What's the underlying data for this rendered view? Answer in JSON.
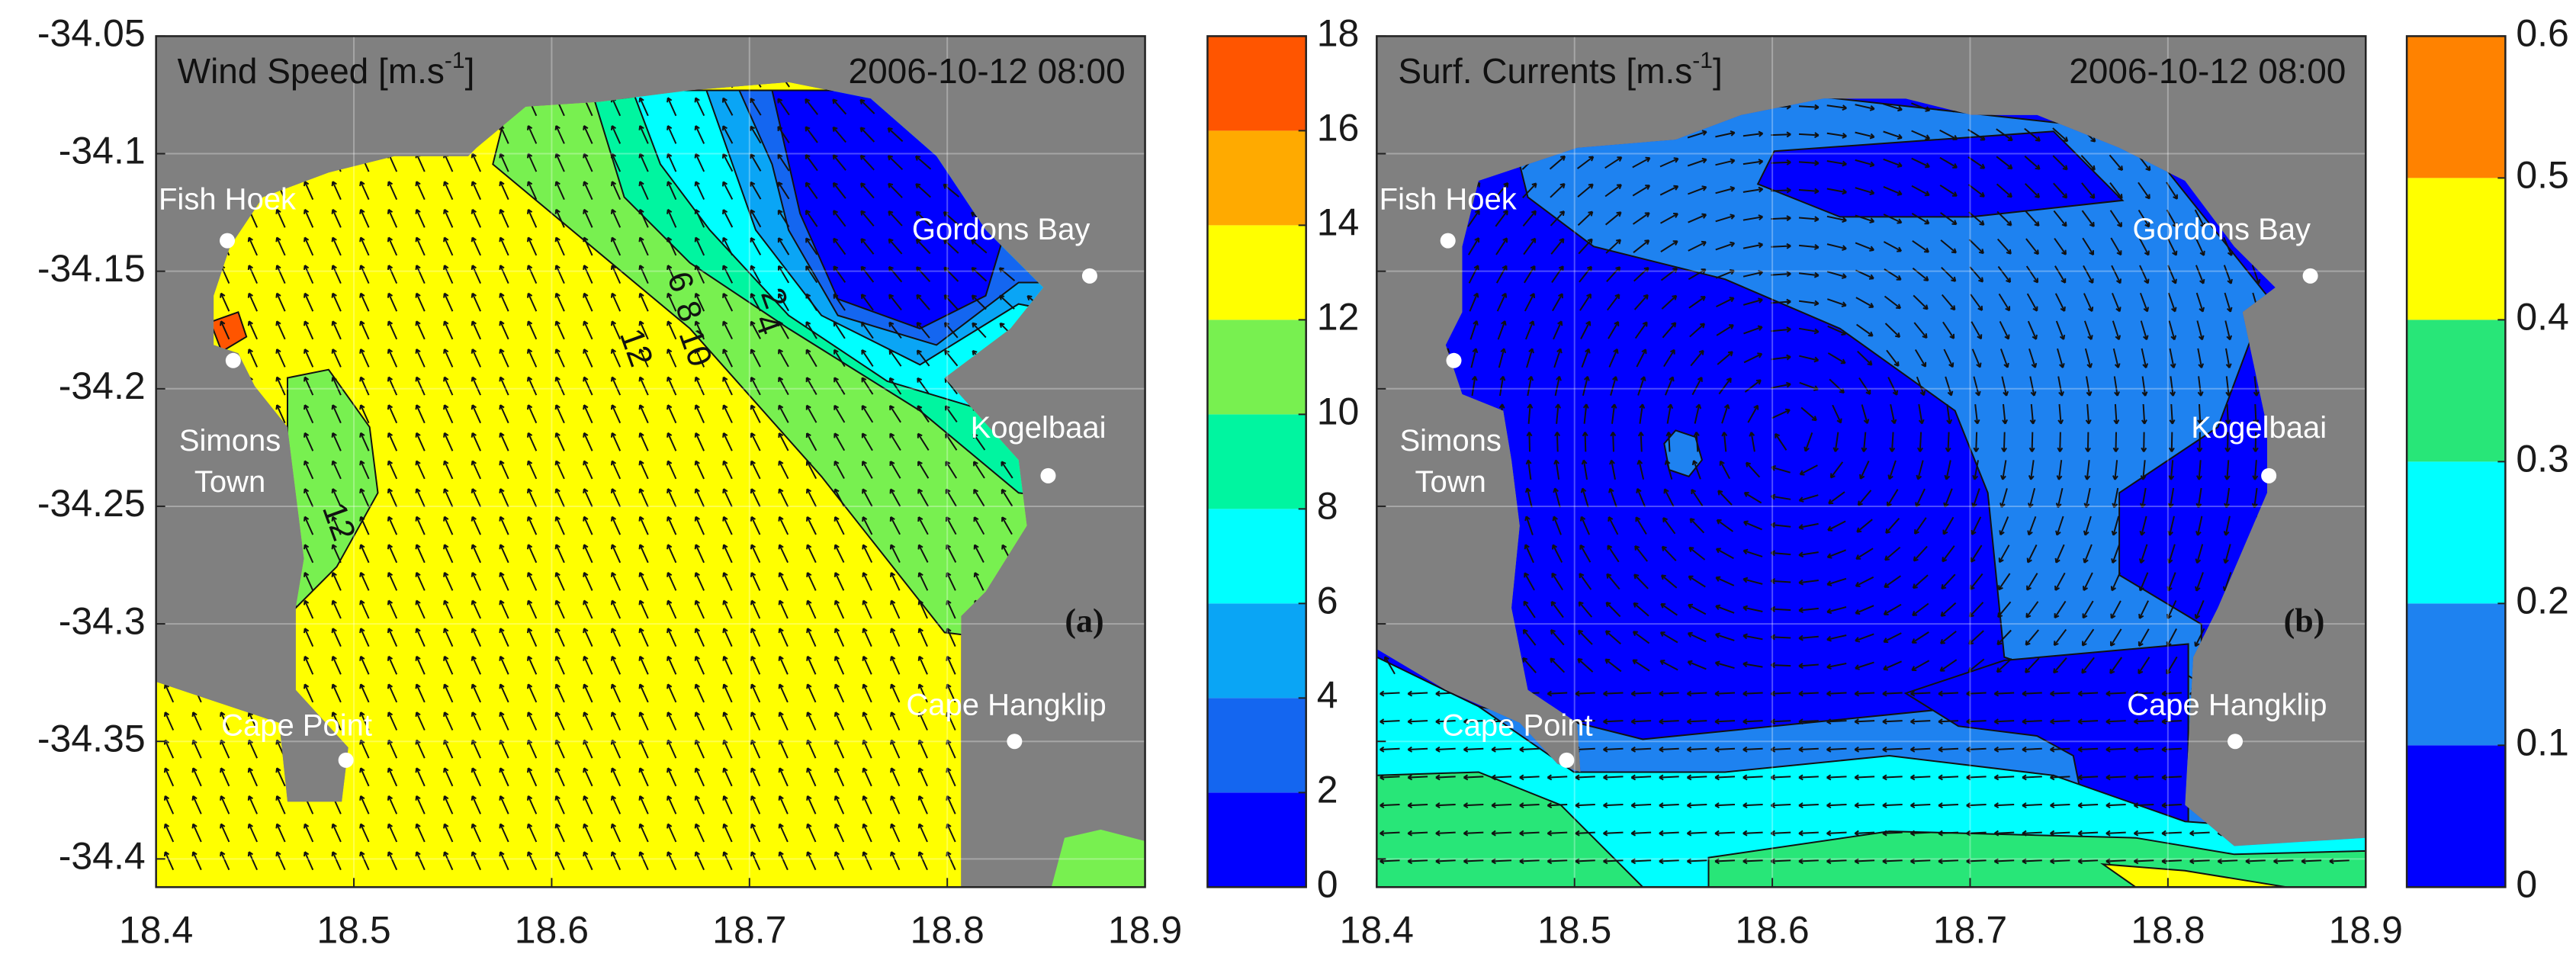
{
  "chart_data": [
    {
      "type": "contour",
      "title": {
        "text": "Wind Speed [m.s",
        "sup": "-1",
        "end": "]"
      },
      "timestamp": "2006-10-12 08:00",
      "panel_label": "(a)",
      "xlim": [
        18.4,
        18.9
      ],
      "xticks": [
        18.4,
        18.5,
        18.6,
        18.7,
        18.8,
        18.9
      ],
      "ylim": [
        -34.412,
        -34.05
      ],
      "yticks": [
        -34.05,
        -34.1,
        -34.15,
        -34.2,
        -34.25,
        -34.3,
        -34.35,
        -34.4
      ],
      "grid": true,
      "places": [
        {
          "name": "Fish Hoek",
          "x": 18.436,
          "y": -34.137
        },
        {
          "name": "Gordons Bay",
          "x": 18.872,
          "y": -34.152
        },
        {
          "name": [
            "Simons",
            "Town"
          ],
          "x": 18.439,
          "y": -34.188
        },
        {
          "name": "Kogelbaai",
          "x": 18.851,
          "y": -34.237
        },
        {
          "name": "Cape Point",
          "x": 18.496,
          "y": -34.358
        },
        {
          "name": "Cape Hangklip",
          "x": 18.834,
          "y": -34.35
        }
      ],
      "contour_labels": [
        6,
        8,
        10,
        12,
        2,
        4,
        12
      ],
      "colorbar": {
        "ylim": [
          0,
          18
        ],
        "yticks": [
          0,
          2,
          4,
          6,
          8,
          10,
          12,
          14,
          16,
          18
        ],
        "colors": [
          "#0000ff",
          "#1466f0",
          "#0aa5f5",
          "#00ffff",
          "#00f5a0",
          "#78f050",
          "#ffff00",
          "#ffaa00",
          "#ff5500"
        ]
      }
    },
    {
      "type": "contour",
      "title": {
        "text": "Surf. Currents [m.s",
        "sup": "-1",
        "end": "]"
      },
      "timestamp": "2006-10-12 08:00",
      "panel_label": "(b)",
      "xlim": [
        18.4,
        18.9
      ],
      "xticks": [
        18.4,
        18.5,
        18.6,
        18.7,
        18.8,
        18.9
      ],
      "ylim": [
        -34.412,
        -34.05
      ],
      "yticks": [
        -34.05,
        -34.1,
        -34.15,
        -34.2,
        -34.25,
        -34.3,
        -34.35,
        -34.4
      ],
      "grid": true,
      "places": [
        {
          "name": "Fish Hoek",
          "x": 18.436,
          "y": -34.137
        },
        {
          "name": "Gordons Bay",
          "x": 18.872,
          "y": -34.152
        },
        {
          "name": [
            "Simons",
            "Town"
          ],
          "x": 18.439,
          "y": -34.188
        },
        {
          "name": "Kogelbaai",
          "x": 18.851,
          "y": -34.237
        },
        {
          "name": "Cape Point",
          "x": 18.496,
          "y": -34.358
        },
        {
          "name": "Cape Hangklip",
          "x": 18.834,
          "y": -34.35
        }
      ],
      "colorbar": {
        "ylim": [
          0,
          0.6
        ],
        "yticks": [
          0,
          0.1,
          0.2,
          0.3,
          0.4,
          0.5,
          0.6
        ],
        "colors": [
          "#0000ff",
          "#1e82f0",
          "#00ffff",
          "#28e678",
          "#ffff00",
          "#ff8200"
        ]
      }
    }
  ]
}
